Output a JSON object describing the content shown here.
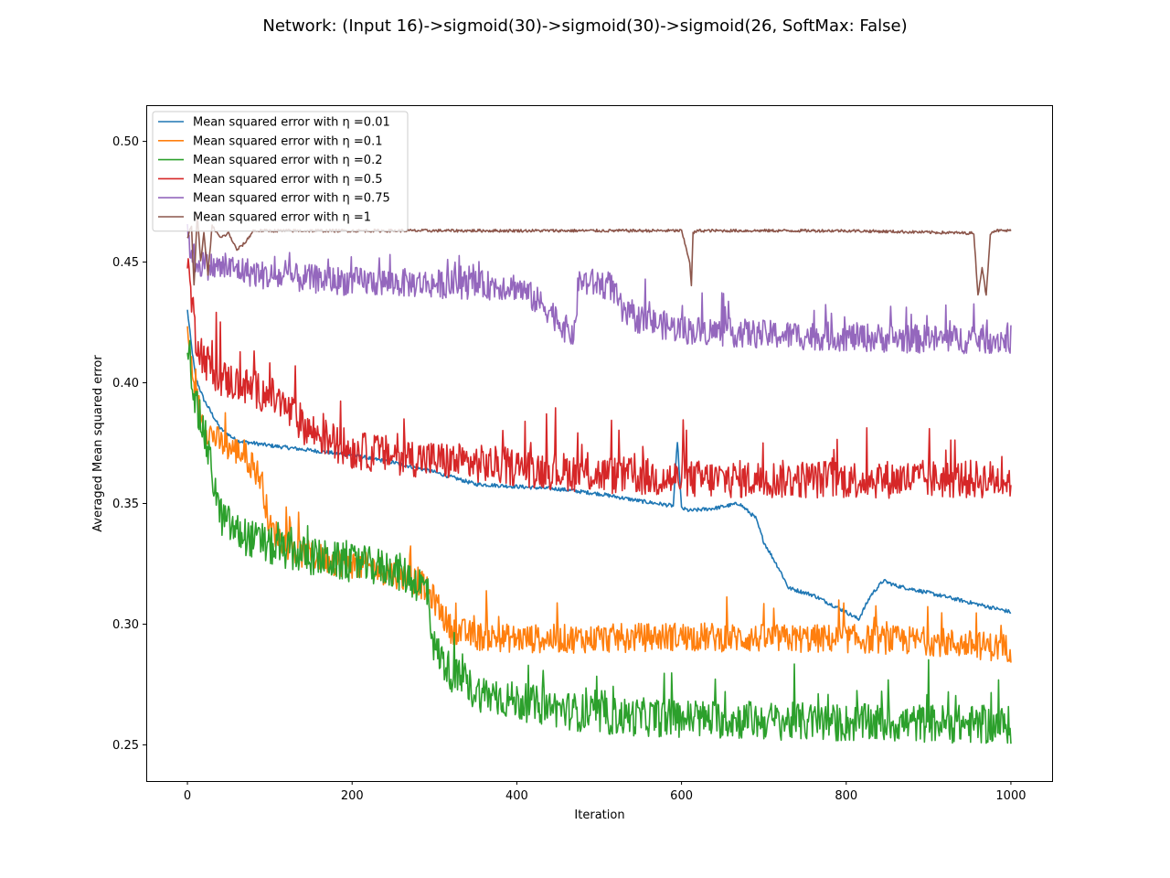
{
  "chart_data": {
    "type": "line",
    "title": "Network: (Input 16)->sigmoid(30)->sigmoid(30)->sigmoid(26, SoftMax: False)",
    "xlabel": "Iteration",
    "ylabel": "Averaged Mean squared error",
    "xlim": [
      -50,
      1050
    ],
    "ylim": [
      0.235,
      0.515
    ],
    "xticks": [
      0,
      200,
      400,
      600,
      800,
      1000
    ],
    "yticks": [
      0.25,
      0.3,
      0.35,
      0.4,
      0.45,
      0.5
    ],
    "xtick_labels": [
      "0",
      "200",
      "400",
      "600",
      "800",
      "1000"
    ],
    "ytick_labels": [
      "0.25",
      "0.30",
      "0.35",
      "0.40",
      "0.45",
      "0.50"
    ],
    "grid": false,
    "legend_position": "top-left",
    "series": [
      {
        "name": "Mean squared error with η =0.01",
        "color": "#1f77b4",
        "noise": 0.0008,
        "x": [
          0,
          5,
          10,
          20,
          40,
          60,
          100,
          150,
          200,
          250,
          300,
          350,
          400,
          450,
          500,
          550,
          590,
          595,
          600,
          610,
          640,
          670,
          690,
          700,
          720,
          730,
          760,
          800,
          815,
          830,
          845,
          860,
          900,
          950,
          1000
        ],
        "y": [
          0.43,
          0.415,
          0.402,
          0.393,
          0.381,
          0.376,
          0.374,
          0.372,
          0.37,
          0.367,
          0.363,
          0.358,
          0.357,
          0.356,
          0.354,
          0.351,
          0.349,
          0.376,
          0.348,
          0.347,
          0.348,
          0.35,
          0.344,
          0.334,
          0.322,
          0.315,
          0.312,
          0.305,
          0.302,
          0.312,
          0.318,
          0.316,
          0.313,
          0.309,
          0.305
        ]
      },
      {
        "name": "Mean squared error with η =0.1",
        "color": "#ff7f0e",
        "noise": 0.006,
        "x": [
          0,
          10,
          20,
          40,
          70,
          90,
          100,
          130,
          180,
          230,
          280,
          300,
          320,
          350,
          400,
          500,
          600,
          700,
          800,
          900,
          1000
        ],
        "y": [
          0.42,
          0.395,
          0.382,
          0.375,
          0.37,
          0.36,
          0.34,
          0.33,
          0.326,
          0.323,
          0.318,
          0.31,
          0.298,
          0.295,
          0.294,
          0.294,
          0.295,
          0.294,
          0.294,
          0.293,
          0.29
        ]
      },
      {
        "name": "Mean squared error with η =0.2",
        "color": "#2ca02c",
        "noise": 0.008,
        "x": [
          0,
          10,
          20,
          40,
          60,
          100,
          150,
          200,
          250,
          290,
          300,
          320,
          350,
          400,
          450,
          500,
          600,
          700,
          800,
          900,
          1000
        ],
        "y": [
          0.42,
          0.39,
          0.38,
          0.345,
          0.338,
          0.332,
          0.328,
          0.325,
          0.323,
          0.315,
          0.29,
          0.28,
          0.272,
          0.268,
          0.265,
          0.262,
          0.261,
          0.26,
          0.259,
          0.259,
          0.258
        ]
      },
      {
        "name": "Mean squared error with η =0.5",
        "color": "#d62728",
        "noise": 0.008,
        "x": [
          0,
          10,
          20,
          40,
          100,
          150,
          200,
          300,
          400,
          500,
          600,
          700,
          800,
          900,
          1000
        ],
        "y": [
          0.45,
          0.42,
          0.41,
          0.402,
          0.395,
          0.38,
          0.372,
          0.368,
          0.365,
          0.362,
          0.36,
          0.36,
          0.36,
          0.36,
          0.36
        ]
      },
      {
        "name": "Mean squared error with η =0.75",
        "color": "#9467bd",
        "noise": 0.006,
        "x": [
          0,
          10,
          30,
          60,
          100,
          150,
          200,
          300,
          400,
          420,
          440,
          460,
          470,
          475,
          500,
          515,
          530,
          600,
          700,
          800,
          900,
          1000
        ],
        "y": [
          0.46,
          0.45,
          0.448,
          0.447,
          0.444,
          0.443,
          0.442,
          0.441,
          0.44,
          0.435,
          0.43,
          0.422,
          0.42,
          0.442,
          0.441,
          0.44,
          0.428,
          0.422,
          0.42,
          0.419,
          0.418,
          0.418
        ]
      },
      {
        "name": "Mean squared error with η =1",
        "color": "#8c564b",
        "noise": 0.0006,
        "x": [
          0,
          5,
          8,
          12,
          16,
          20,
          25,
          30,
          40,
          50,
          60,
          70,
          80,
          100,
          200,
          400,
          600,
          610,
          612,
          614,
          620,
          800,
          950,
          955,
          960,
          965,
          970,
          975,
          980,
          1000
        ],
        "y": [
          0.46,
          0.465,
          0.44,
          0.47,
          0.45,
          0.462,
          0.445,
          0.465,
          0.46,
          0.462,
          0.455,
          0.458,
          0.463,
          0.463,
          0.463,
          0.463,
          0.463,
          0.45,
          0.44,
          0.462,
          0.463,
          0.463,
          0.462,
          0.462,
          0.436,
          0.448,
          0.436,
          0.462,
          0.463,
          0.463
        ]
      }
    ]
  }
}
